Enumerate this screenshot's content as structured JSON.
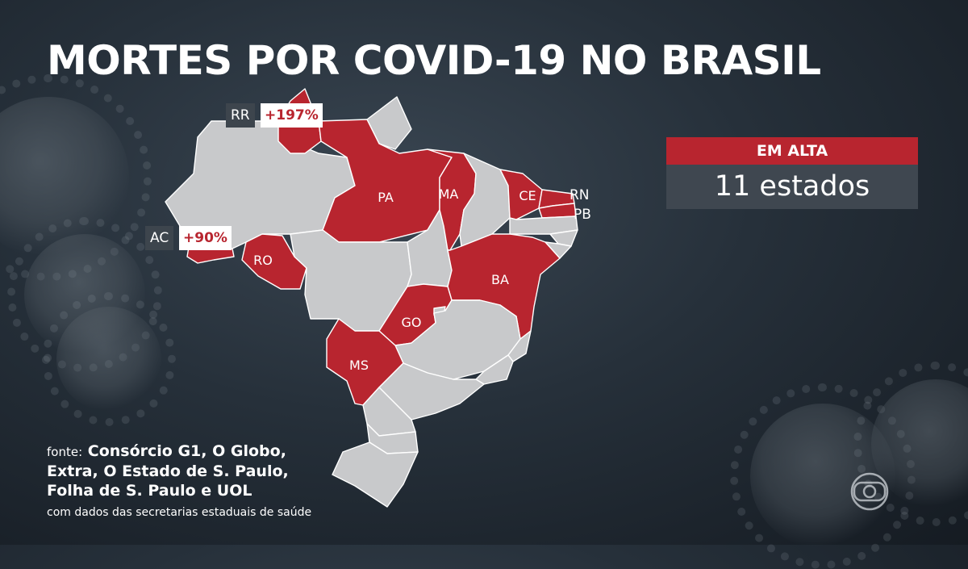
{
  "title": "MORTES POR COVID-19 NO BRASIL",
  "colors": {
    "rising": "#b8252f",
    "neutral": "#c8c9cb",
    "badge_bg": "#3f4750",
    "background": "#1e262e"
  },
  "map": {
    "highlighted_states": [
      "RR",
      "AC",
      "RO",
      "PA",
      "MA",
      "CE",
      "RN",
      "PB",
      "BA",
      "GO",
      "MS"
    ],
    "labels": {
      "pa": "PA",
      "ma": "MA",
      "ce": "CE",
      "rn": "RN",
      "pb": "PB",
      "ro": "RO",
      "ba": "BA",
      "go": "GO",
      "ms": "MS"
    },
    "callouts": [
      {
        "state": "RR",
        "change": "+197%"
      },
      {
        "state": "AC",
        "change": "+90%"
      }
    ]
  },
  "badge": {
    "header": "EM ALTA",
    "value": "11 estados"
  },
  "source": {
    "prefix": "fonte:",
    "line1": "Consórcio G1, O Globo,",
    "line2": "Extra, O Estado de S. Paulo,",
    "line3": "Folha de S. Paulo e UOL",
    "note": "com dados das secretarias estaduais de saúde"
  },
  "logo": "globo-logo-icon"
}
